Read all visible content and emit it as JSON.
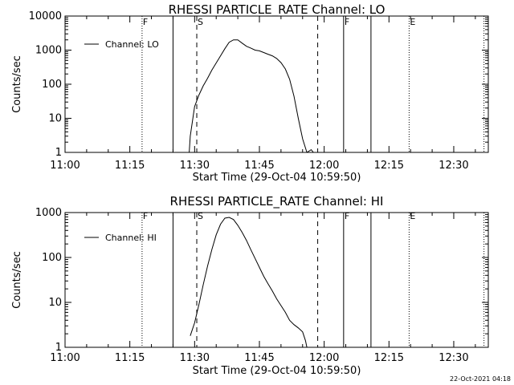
{
  "chart_data": [
    {
      "type": "line",
      "title": "RHESSI PARTICLE_RATE Channel: LO",
      "xlabel": "Start Time (29-Oct-04 10:59:50)",
      "ylabel": "Counts/sec",
      "yscale": "log",
      "ylim": [
        1,
        10000
      ],
      "xlim": [
        "11:00",
        "12:38"
      ],
      "x_tick_labels": [
        "11:00",
        "11:15",
        "11:30",
        "11:45",
        "12:00",
        "12:15",
        "12:30"
      ],
      "y_tick_labels": [
        "1",
        "10",
        "100",
        "1000",
        "10000"
      ],
      "legend": "top-left",
      "series": [
        {
          "name": "Channel: LO",
          "x": [
            "11:28:45",
            "11:29:00",
            "11:30:00",
            "11:31:00",
            "11:32:00",
            "11:33:00",
            "11:34:00",
            "11:35:00",
            "11:36:00",
            "11:37:00",
            "11:38:00",
            "11:39:00",
            "11:40:00",
            "11:41:00",
            "11:42:00",
            "11:43:00",
            "11:44:00",
            "11:45:00",
            "11:46:00",
            "11:47:00",
            "11:48:00",
            "11:49:00",
            "11:50:00",
            "11:51:00",
            "11:52:00",
            "11:53:00",
            "11:54:00",
            "11:55:00",
            "11:56:00",
            "11:57:00",
            "11:57:30"
          ],
          "y": [
            1,
            3,
            22,
            48,
            90,
            150,
            260,
            420,
            680,
            1100,
            1700,
            2000,
            2000,
            1600,
            1300,
            1150,
            1000,
            950,
            850,
            760,
            680,
            570,
            430,
            280,
            140,
            45,
            10,
            2.5,
            1,
            1.2,
            1
          ]
        }
      ],
      "markers": [
        {
          "label": "F",
          "x": "11:17:50",
          "style": "dotted"
        },
        {
          "label": "",
          "x": "11:25:00",
          "style": "solid"
        },
        {
          "label": "S",
          "x": "11:30:30",
          "style": "dashed"
        },
        {
          "label": "",
          "x": "11:58:30",
          "style": "dashed"
        },
        {
          "label": "F",
          "x": "12:04:30",
          "style": "solid"
        },
        {
          "label": "",
          "x": "12:10:50",
          "style": "solid"
        },
        {
          "label": "E",
          "x": "12:19:40",
          "style": "dotted"
        },
        {
          "label": "",
          "x": "12:37:00",
          "style": "dotted"
        }
      ]
    },
    {
      "type": "line",
      "title": "RHESSI PARTICLE_RATE Channel: HI",
      "xlabel": "Start Time (29-Oct-04 10:59:50)",
      "ylabel": "Counts/sec",
      "yscale": "log",
      "ylim": [
        1,
        1000
      ],
      "xlim": [
        "11:00",
        "12:38"
      ],
      "x_tick_labels": [
        "11:00",
        "11:15",
        "11:30",
        "11:45",
        "12:00",
        "12:15",
        "12:30"
      ],
      "y_tick_labels": [
        "1",
        "10",
        "100",
        "1000"
      ],
      "legend": "top-left",
      "series": [
        {
          "name": "Channel: HI",
          "x": [
            "11:29:00",
            "11:30:00",
            "11:31:00",
            "11:32:00",
            "11:33:00",
            "11:34:00",
            "11:35:00",
            "11:36:00",
            "11:37:00",
            "11:38:00",
            "11:39:00",
            "11:40:00",
            "11:41:00",
            "11:42:00",
            "11:43:00",
            "11:44:00",
            "11:45:00",
            "11:46:00",
            "11:47:00",
            "11:48:00",
            "11:49:00",
            "11:50:00",
            "11:51:00",
            "11:52:00",
            "11:53:00",
            "11:54:00",
            "11:55:00",
            "11:55:40",
            "11:56:00"
          ],
          "y": [
            1.8,
            3.5,
            9,
            25,
            65,
            150,
            320,
            550,
            750,
            780,
            700,
            520,
            360,
            240,
            150,
            95,
            60,
            38,
            26,
            18,
            12,
            8.5,
            6,
            4,
            3.2,
            2.7,
            2.2,
            1.4,
            1
          ]
        }
      ],
      "markers": [
        {
          "label": "F",
          "x": "11:17:50",
          "style": "dotted"
        },
        {
          "label": "",
          "x": "11:25:00",
          "style": "solid"
        },
        {
          "label": "S",
          "x": "11:30:30",
          "style": "dashed"
        },
        {
          "label": "",
          "x": "11:58:30",
          "style": "dashed"
        },
        {
          "label": "F",
          "x": "12:04:30",
          "style": "solid"
        },
        {
          "label": "",
          "x": "12:10:50",
          "style": "solid"
        },
        {
          "label": "E",
          "x": "12:19:40",
          "style": "dotted"
        },
        {
          "label": "",
          "x": "12:37:00",
          "style": "dotted"
        }
      ]
    }
  ],
  "footer": {
    "timestamp": "22-Oct-2021 04:18"
  }
}
